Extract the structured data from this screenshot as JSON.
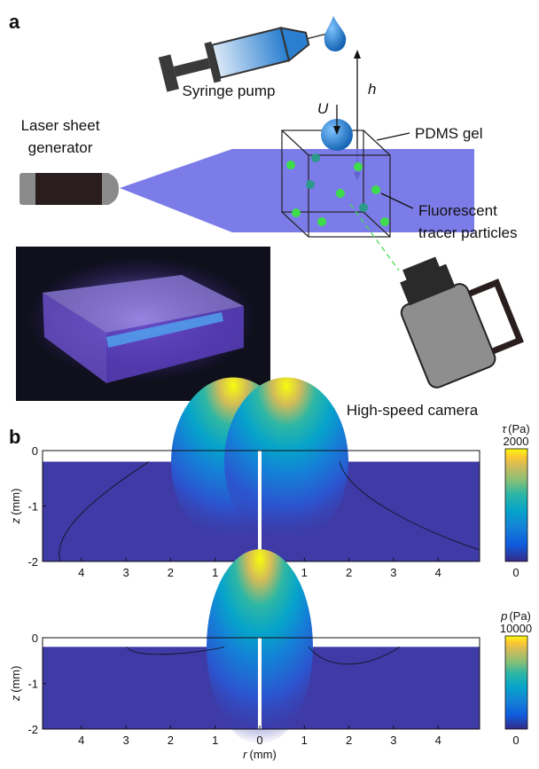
{
  "panel_a": {
    "label": "a",
    "syringe_label": "Syringe pump",
    "h_label": "h",
    "u_label": "U",
    "pdms_label": "PDMS gel",
    "laser_label": [
      "Laser sheet",
      "generator"
    ],
    "tracer_label": [
      "Fluorescent",
      "tracer particles"
    ],
    "camera_label": "High-speed camera"
  },
  "panel_b": {
    "label": "b",
    "plots": [
      {
        "y_var": "z",
        "y_unit": "(mm)",
        "x_var": "r",
        "x_unit": "(mm)",
        "xticks": [
          "4",
          "3",
          "2",
          "1",
          "0",
          "1",
          "2",
          "3",
          "4"
        ],
        "yticks": [
          0,
          -1,
          -2
        ],
        "colorbar": {
          "var": "τ",
          "unit": "(Pa)",
          "max": "2000",
          "min": "0"
        }
      },
      {
        "y_var": "z",
        "y_unit": "(mm)",
        "x_var": "r",
        "x_unit": "(mm)",
        "xticks": [
          "4",
          "3",
          "2",
          "1",
          "0",
          "1",
          "2",
          "3",
          "4"
        ],
        "yticks": [
          0,
          -1,
          -2
        ],
        "colorbar": {
          "var": "p",
          "unit": "(Pa)",
          "max": "10000",
          "min": "0"
        }
      }
    ]
  }
}
